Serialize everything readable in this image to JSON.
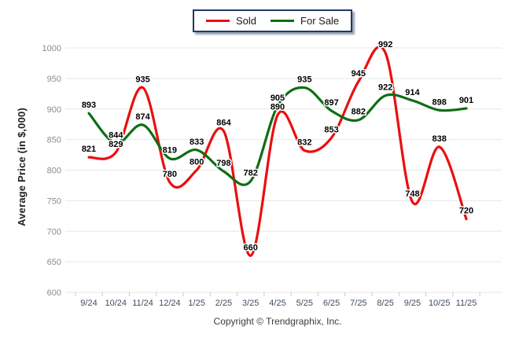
{
  "chart_data": {
    "type": "line",
    "smooth": true,
    "categories": [
      "9/24",
      "10/24",
      "11/24",
      "12/24",
      "1/25",
      "2/25",
      "3/25",
      "4/25",
      "5/25",
      "6/25",
      "7/25",
      "8/25",
      "9/25",
      "10/25",
      "11/25"
    ],
    "series": [
      {
        "name": "Sold",
        "color": "#e90f0f",
        "values": [
          821,
          829,
          935,
          780,
          800,
          864,
          660,
          890,
          832,
          853,
          945,
          992,
          748,
          838,
          720
        ]
      },
      {
        "name": "For Sale",
        "color": "#0f6e14",
        "values": [
          893,
          844,
          874,
          819,
          833,
          798,
          782,
          905,
          935,
          897,
          882,
          922,
          914,
          898,
          901
        ]
      }
    ],
    "title": "",
    "xlabel": "",
    "ylabel": "Average Price (in $,000)",
    "ylim": [
      600,
      1000
    ],
    "ytick_step": 50,
    "ytick_labels": [
      "600",
      "650",
      "700",
      "750",
      "800",
      "850",
      "900",
      "950",
      "1000"
    ],
    "grid": true,
    "legend_position": "top-center",
    "data_labels": true
  },
  "footer": {
    "copyright": "Copyright © Trendgraphix, Inc."
  },
  "colors": {
    "background": "#ffffff",
    "gridline": "#e7e7e7",
    "axis_tick": "#c4cbd4",
    "y_tick_label": "#8c8c8c",
    "x_tick_label": "#3f4d63",
    "data_label": "#000000",
    "legend_border": "#1e3a66",
    "legend_text": "#1a1a1a",
    "sold_red": "#e90f0f",
    "for_sale_green": "#0f6e14"
  }
}
